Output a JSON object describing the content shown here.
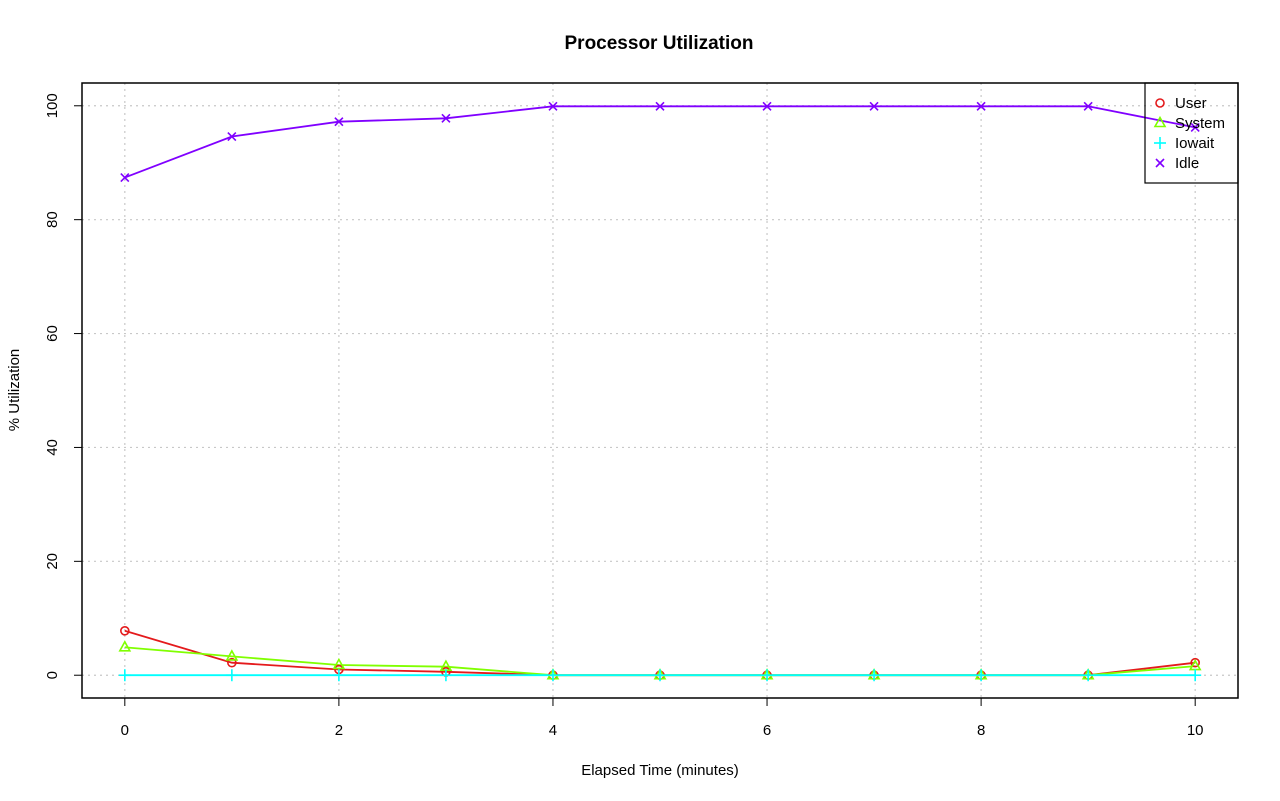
{
  "chart_data": {
    "type": "line",
    "title": "Processor Utilization",
    "xlabel": "Elapsed Time (minutes)",
    "ylabel": "% Utilization",
    "x": [
      0,
      1,
      2,
      3,
      4,
      5,
      6,
      7,
      8,
      9,
      10
    ],
    "xlim": [
      -0.4,
      10.4
    ],
    "ylim": [
      -4,
      104
    ],
    "xticks": [
      0,
      2,
      4,
      6,
      8,
      10
    ],
    "yticks": [
      0,
      20,
      40,
      60,
      80,
      100
    ],
    "grid": true,
    "legend_position": "top-right",
    "series": [
      {
        "name": "User",
        "color": "#e41a1c",
        "marker": "circle",
        "values": [
          7.8,
          2.2,
          1.0,
          0.6,
          0.0,
          0.0,
          0.0,
          0.0,
          0.0,
          0.0,
          2.2
        ]
      },
      {
        "name": "System",
        "color": "#80ff00",
        "marker": "triangle",
        "values": [
          4.9,
          3.3,
          1.8,
          1.5,
          0.0,
          0.0,
          0.0,
          0.0,
          0.0,
          0.0,
          1.6
        ]
      },
      {
        "name": "Iowait",
        "color": "#00ffff",
        "marker": "plus",
        "values": [
          0.0,
          0.0,
          0.0,
          0.0,
          0.0,
          0.0,
          0.0,
          0.0,
          0.0,
          0.0,
          0.0
        ]
      },
      {
        "name": "Idle",
        "color": "#8000ff",
        "marker": "cross",
        "values": [
          87.4,
          94.6,
          97.2,
          97.8,
          99.9,
          99.9,
          99.9,
          99.9,
          99.9,
          99.9,
          96.2
        ]
      }
    ]
  }
}
